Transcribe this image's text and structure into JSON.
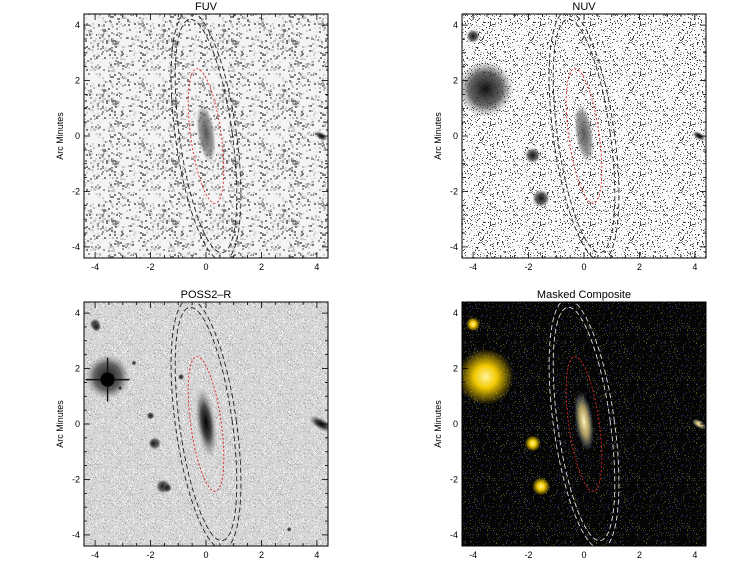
{
  "figure": {
    "axis_label": "Arc Minutes",
    "tick_labels": [
      "-4",
      "-2",
      "0",
      "2",
      "4"
    ],
    "panels": [
      {
        "id": "fuv",
        "title": "FUV",
        "style": "noise-gray"
      },
      {
        "id": "nuv",
        "title": "NUV",
        "style": "noise-speckle"
      },
      {
        "id": "poss",
        "title": "POSS2–R",
        "style": "optical"
      },
      {
        "id": "comp",
        "title": "Masked Composite",
        "style": "composite"
      }
    ],
    "colors": {
      "aperture_inner": "#e02020",
      "aperture_outer_light": "#222222",
      "aperture_outer_dark": "#dddddd",
      "composite_star": "#ffd400"
    }
  }
}
